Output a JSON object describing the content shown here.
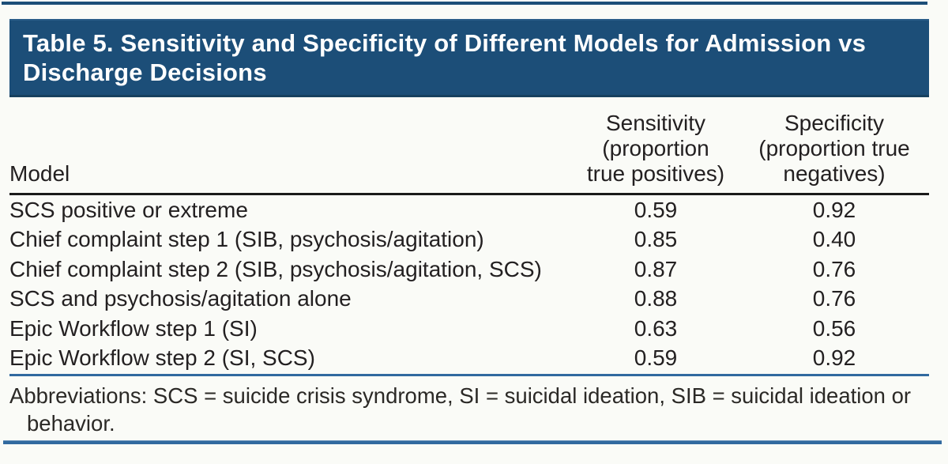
{
  "title": {
    "full": "Table 5. Sensitivity and Specificity of Different Models for Admission vs Discharge Decisions",
    "line1": "Table 5. Sensitivity and Specificity of Different Models for Admission vs",
    "line2": "Discharge Decisions"
  },
  "table": {
    "columns": {
      "model_label": "Model",
      "sensitivity": {
        "line1": "Sensitivity",
        "line2": "(proportion",
        "line3": "true positives)"
      },
      "specificity": {
        "line1": "Specificity",
        "line2": "(proportion true",
        "line3": "negatives)"
      }
    },
    "rows": [
      {
        "model": "SCS positive or extreme",
        "sensitivity": "0.59",
        "specificity": "0.92"
      },
      {
        "model": "Chief complaint step 1 (SIB, psychosis/agitation)",
        "sensitivity": "0.85",
        "specificity": "0.40"
      },
      {
        "model": "Chief complaint step 2 (SIB, psychosis/agitation, SCS)",
        "sensitivity": "0.87",
        "specificity": "0.76"
      },
      {
        "model": "SCS and psychosis/agitation alone",
        "sensitivity": "0.88",
        "specificity": "0.76"
      },
      {
        "model": "Epic Workflow step 1 (SI)",
        "sensitivity": "0.63",
        "specificity": "0.56"
      },
      {
        "model": "Epic Workflow step 2 (SI, SCS)",
        "sensitivity": "0.59",
        "specificity": "0.92"
      }
    ]
  },
  "footer": {
    "line1": "Abbreviations: SCS = suicide crisis syndrome, SI = suicidal ideation, SIB = suicidal ideation or",
    "line2": "behavior."
  },
  "colors": {
    "title_bar_bg": "#1C4E78",
    "title_text": "#FFFFFF",
    "rule_blue": "#31699F",
    "rule_black": "#1A1A1A",
    "body_text": "#232021",
    "background": "#FAFBF7"
  }
}
